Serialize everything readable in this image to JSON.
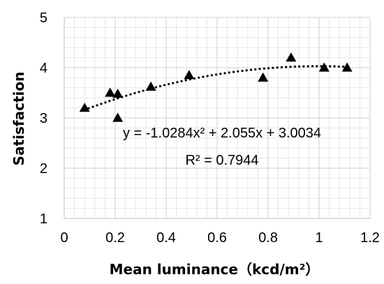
{
  "chart_data": {
    "type": "scatter",
    "title": "",
    "xlabel": "Mean luminance（kcd/m²）",
    "ylabel": "Satisfaction",
    "xlim": [
      0,
      1.2
    ],
    "ylim": [
      1,
      5
    ],
    "x_ticks": [
      "0",
      "0.2",
      "0.4",
      "0.6",
      "0.8",
      "1",
      "1.2"
    ],
    "y_ticks": [
      "1",
      "2",
      "3",
      "4",
      "5"
    ],
    "x_tick_values": [
      0,
      0.2,
      0.4,
      0.6,
      0.8,
      1.0,
      1.2
    ],
    "y_tick_values": [
      1,
      2,
      3,
      4,
      5
    ],
    "grid": true,
    "marker": "triangle",
    "series": [
      {
        "points": [
          {
            "x": 0.08,
            "y": 3.2
          },
          {
            "x": 0.18,
            "y": 3.5
          },
          {
            "x": 0.21,
            "y": 3.48
          },
          {
            "x": 0.21,
            "y": 3.0
          },
          {
            "x": 0.34,
            "y": 3.62
          },
          {
            "x": 0.49,
            "y": 3.85
          },
          {
            "x": 0.78,
            "y": 3.8
          },
          {
            "x": 0.89,
            "y": 4.2
          },
          {
            "x": 1.02,
            "y": 4.0
          },
          {
            "x": 1.11,
            "y": 4.0
          }
        ]
      }
    ],
    "trendline": {
      "type": "polynomial",
      "coefficients": [
        -1.0284,
        2.055,
        3.0034
      ],
      "x_range": [
        0.08,
        1.11
      ],
      "style": "dotted"
    },
    "annotations": {
      "equation": "y = -1.0284x² + 2.055x + 3.0034",
      "r2": "R² = 0.7944"
    }
  }
}
